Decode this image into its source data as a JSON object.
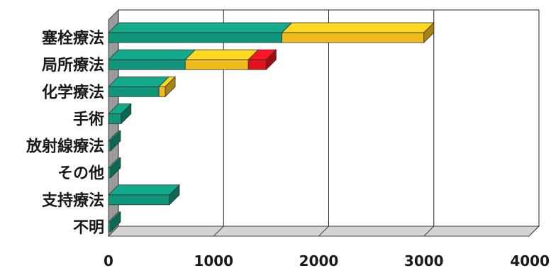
{
  "chart_data": {
    "type": "bar",
    "orientation": "horizontal",
    "stacked": true,
    "style_3d": true,
    "categories": [
      "塞栓療法",
      "局所療法",
      "化学療法",
      "手術",
      "放射線療法",
      "その他",
      "支持療法",
      "不明"
    ],
    "series": [
      {
        "color": "#11957a",
        "values": [
          1650,
          730,
          480,
          120,
          20,
          20,
          580,
          20
        ]
      },
      {
        "color": "#f0bc1c",
        "values": [
          1350,
          600,
          60,
          0,
          0,
          0,
          0,
          0
        ]
      },
      {
        "color": "#e0121e",
        "values": [
          0,
          170,
          0,
          0,
          0,
          0,
          0,
          0
        ]
      }
    ],
    "x_ticks": [
      "0",
      "1000",
      "2000",
      "3000",
      "4000"
    ],
    "xlim": [
      0,
      4000
    ],
    "grid": "vertical",
    "legend": "none"
  }
}
